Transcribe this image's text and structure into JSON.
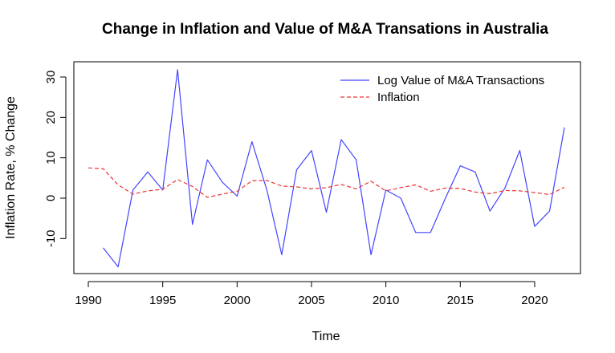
{
  "chart_data": {
    "type": "line",
    "title": "Change in Inflation and Value of M&A Transations in Australia",
    "xlabel": "Time",
    "ylabel": "Inflation Rate, % Change",
    "xlim": [
      1990,
      2022
    ],
    "ylim": [
      -20,
      34
    ],
    "x_ticks": [
      1990,
      1995,
      2000,
      2005,
      2010,
      2015,
      2020
    ],
    "y_ticks": [
      -10,
      0,
      10,
      20,
      30
    ],
    "legend_position": "top-right",
    "grid": false,
    "series": [
      {
        "name": "Log Value of M&A Transactions",
        "color": "#4444ff",
        "dash": "solid",
        "x": [
          1991,
          1992,
          1993,
          1994,
          1995,
          1996,
          1997,
          1998,
          1999,
          2000,
          2001,
          2002,
          2003,
          2004,
          2005,
          2006,
          2007,
          2008,
          2009,
          2010,
          2011,
          2012,
          2013,
          2014,
          2015,
          2016,
          2017,
          2018,
          2019,
          2020,
          2021,
          2022
        ],
        "values": [
          -12.3,
          -17.0,
          2.0,
          6.5,
          2.0,
          31.8,
          -6.5,
          9.5,
          4.0,
          0.5,
          14.0,
          2.0,
          -14.0,
          7.0,
          11.8,
          -3.5,
          14.5,
          9.5,
          -14.0,
          2.0,
          0.0,
          -8.5,
          -8.5,
          0.0,
          8.0,
          6.5,
          -3.2,
          2.5,
          11.8,
          -7.0,
          -3.2,
          17.5
        ]
      },
      {
        "name": "Inflation",
        "color": "#ee3333",
        "dash": "dashed",
        "x": [
          1990,
          1991,
          1992,
          1993,
          1994,
          1995,
          1996,
          1997,
          1998,
          1999,
          2000,
          2001,
          2002,
          2003,
          2004,
          2005,
          2006,
          2007,
          2008,
          2009,
          2010,
          2011,
          2012,
          2013,
          2014,
          2015,
          2016,
          2017,
          2018,
          2019,
          2020,
          2021,
          2022
        ],
        "values": [
          7.5,
          7.3,
          3.3,
          1.0,
          1.8,
          2.2,
          4.6,
          2.9,
          0.2,
          1.0,
          1.7,
          4.3,
          4.4,
          3.0,
          2.8,
          2.3,
          2.6,
          3.4,
          2.3,
          4.2,
          1.8,
          2.6,
          3.3,
          1.7,
          2.5,
          2.4,
          1.5,
          1.1,
          1.9,
          1.8,
          1.4,
          0.9,
          2.7
        ]
      }
    ]
  }
}
